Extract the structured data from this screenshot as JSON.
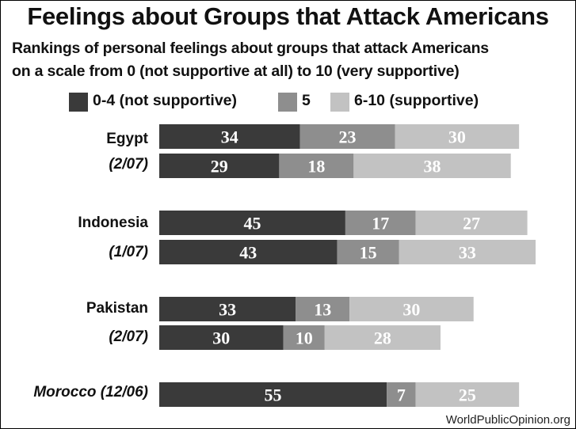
{
  "title": "Feelings about Groups that Attack Americans",
  "subtitle_line1": "Rankings of personal feelings about groups that attack Americans",
  "subtitle_line2": "on a scale from 0 (not supportive at all) to 10 (very supportive)",
  "source": "WorldPublicOpinion.org",
  "colors": {
    "not_supportive": "#3a3a3a",
    "neutral": "#8e8e8e",
    "supportive": "#c2c2c2"
  },
  "chart_data": {
    "type": "bar",
    "orientation": "horizontal",
    "stacked": true,
    "legend_position": "top",
    "legend": [
      "0-4 (not supportive)",
      "5",
      "6-10 (supportive)"
    ],
    "categories": [
      "Egypt",
      "(2/07)",
      "Indonesia",
      "(1/07)",
      "Pakistan",
      "(2/07)",
      "Morocco (12/06)"
    ],
    "series": [
      {
        "name": "0-4 (not supportive)",
        "values": [
          34,
          29,
          45,
          43,
          33,
          30,
          55
        ]
      },
      {
        "name": "5",
        "values": [
          23,
          18,
          17,
          15,
          13,
          10,
          7
        ]
      },
      {
        "name": "6-10 (supportive)",
        "values": [
          30,
          38,
          27,
          33,
          30,
          28,
          25
        ]
      }
    ]
  }
}
